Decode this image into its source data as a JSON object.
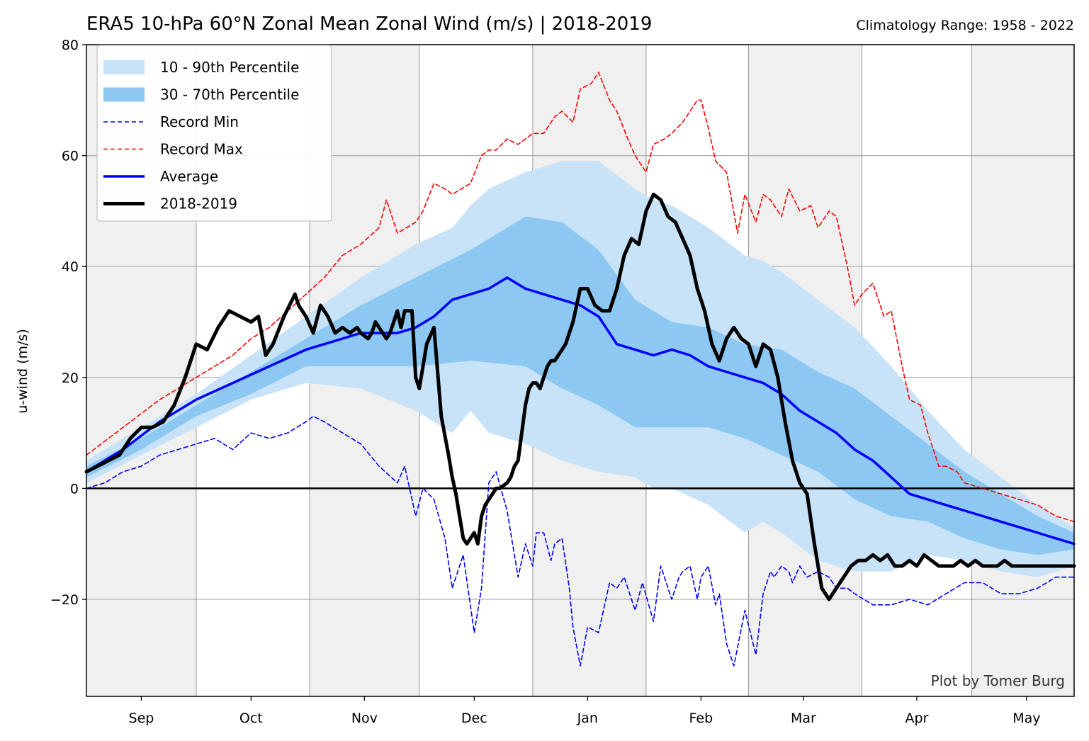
{
  "chart_data": {
    "type": "area",
    "title": "ERA5 10-hPa 60°N Zonal Mean Zonal Wind (m/s) | 2018-2019",
    "subtitle": "Climatology Range: 1958 - 2022",
    "ylabel": "u-wind (m/s)",
    "xlabel": "",
    "credit": "Plot by Tomer Burg",
    "ylim": [
      -37.5,
      80
    ],
    "xlim": [
      0,
      270
    ],
    "yticks": [
      80,
      60,
      40,
      20,
      0,
      -20
    ],
    "ytick_labels": [
      "80",
      "60",
      "40",
      "20",
      "0",
      "−20"
    ],
    "month_ticks": [
      {
        "label": "Sep",
        "x": 15
      },
      {
        "label": "Oct",
        "x": 45
      },
      {
        "label": "Nov",
        "x": 76
      },
      {
        "label": "Dec",
        "x": 106
      },
      {
        "label": "Jan",
        "x": 137
      },
      {
        "label": "Feb",
        "x": 168
      },
      {
        "label": "Mar",
        "x": 196
      },
      {
        "label": "Apr",
        "x": 227
      },
      {
        "label": "May",
        "x": 257
      }
    ],
    "shaded_periods": [
      [
        0,
        30
      ],
      [
        61,
        91
      ],
      [
        122,
        153
      ],
      [
        181,
        212
      ],
      [
        242,
        270
      ]
    ],
    "grid": true,
    "legend_placement": "top-left",
    "legend": [
      {
        "label": "10 - 90th Percentile",
        "kind": "fill",
        "color": "#c8e3f8"
      },
      {
        "label": "30 - 70th Percentile",
        "kind": "fill",
        "color": "#8dc8f2"
      },
      {
        "label": "Record Min",
        "kind": "dashed",
        "color": "#0000ff"
      },
      {
        "label": "Record Max",
        "kind": "dashed",
        "color": "#ff0000"
      },
      {
        "label": "Average",
        "kind": "solid",
        "color": "#0000ff"
      },
      {
        "label": "2018-2019",
        "kind": "solid-thick",
        "color": "#000000"
      }
    ],
    "series": {
      "p10_90": {
        "x": [
          0,
          15,
          30,
          45,
          60,
          75,
          90,
          100,
          105,
          110,
          120,
          130,
          140,
          150,
          155,
          160,
          170,
          180,
          185,
          190,
          200,
          210,
          220,
          230,
          240,
          250,
          260,
          270
        ],
        "upper": [
          5,
          11,
          17,
          24,
          31,
          38,
          44,
          47,
          51,
          54,
          57,
          59,
          59,
          54,
          52,
          51,
          47,
          42,
          41,
          39,
          34,
          29,
          22,
          14,
          7,
          2,
          -3,
          -7
        ],
        "lower": [
          1,
          6,
          11,
          16,
          19,
          18,
          14,
          10,
          14,
          10,
          8,
          5,
          3,
          2,
          0,
          0,
          -3,
          -8,
          -6,
          -8,
          -13,
          -15,
          -15,
          -12,
          -13,
          -15,
          -16,
          -14
        ]
      },
      "p30_70": {
        "x": [
          0,
          15,
          30,
          45,
          60,
          75,
          90,
          105,
          120,
          130,
          140,
          150,
          160,
          170,
          180,
          190,
          200,
          210,
          220,
          230,
          240,
          250,
          260,
          270
        ],
        "upper": [
          4,
          9,
          15,
          21,
          27,
          33,
          38,
          43,
          49,
          48,
          43,
          34,
          30,
          29,
          26,
          25,
          21,
          18,
          13,
          8,
          3,
          -1,
          -5,
          -8
        ],
        "lower": [
          2,
          7,
          13,
          17,
          22,
          22,
          22,
          23,
          22,
          18,
          15,
          11,
          11,
          11,
          9,
          6,
          3,
          -2,
          -5,
          -6,
          -9,
          -11,
          -12,
          -11
        ]
      },
      "record_min": {
        "x": [
          0,
          5,
          10,
          15,
          20,
          25,
          30,
          35,
          40,
          45,
          50,
          55,
          60,
          62,
          65,
          70,
          75,
          80,
          85,
          87,
          90,
          92,
          95,
          98,
          100,
          103,
          106,
          108,
          110,
          112,
          115,
          118,
          120,
          122,
          123,
          125,
          127,
          128,
          130,
          132,
          133,
          135,
          137,
          140,
          143,
          145,
          147,
          150,
          152,
          155,
          157,
          160,
          162,
          163,
          165,
          167,
          168,
          170,
          172,
          173,
          175,
          177,
          180,
          183,
          185,
          187,
          188,
          190,
          192,
          193,
          195,
          197,
          200,
          203,
          205,
          208,
          210,
          215,
          220,
          225,
          230,
          235,
          240,
          245,
          250,
          255,
          260,
          265,
          270
        ],
        "y": [
          0,
          1,
          3,
          4,
          6,
          7,
          8,
          9,
          7,
          10,
          9,
          10,
          12,
          13,
          12,
          10,
          8,
          4,
          1,
          4,
          -5,
          0,
          -2,
          -9,
          -18,
          -12,
          -26,
          -18,
          1,
          3,
          -4,
          -16,
          -10,
          -14,
          -8,
          -8,
          -13,
          -10,
          -9,
          -18,
          -25,
          -32,
          -25,
          -26,
          -17,
          -18,
          -16,
          -22,
          -17,
          -24,
          -14,
          -20,
          -16,
          -15,
          -14,
          -20,
          -16,
          -14,
          -21,
          -19,
          -28,
          -32,
          -22,
          -30,
          -19,
          -15,
          -16,
          -14,
          -15,
          -17,
          -14,
          -16,
          -15,
          -16,
          -18,
          -18,
          -19,
          -21,
          -21,
          -20,
          -21,
          -19,
          -17,
          -17,
          -19,
          -19,
          -18,
          -16,
          -16
        ]
      },
      "record_max": {
        "x": [
          0,
          10,
          20,
          30,
          40,
          45,
          50,
          55,
          60,
          65,
          70,
          75,
          80,
          82,
          85,
          90,
          92,
          95,
          98,
          100,
          105,
          108,
          110,
          112,
          115,
          118,
          120,
          122,
          125,
          128,
          130,
          133,
          135,
          138,
          140,
          143,
          145,
          148,
          150,
          153,
          155,
          158,
          160,
          163,
          165,
          167,
          168,
          170,
          172,
          175,
          178,
          180,
          183,
          185,
          187,
          190,
          192,
          195,
          198,
          200,
          203,
          205,
          208,
          210,
          212,
          215,
          218,
          220,
          223,
          225,
          228,
          230,
          233,
          235,
          238,
          240,
          245,
          250,
          255,
          260,
          265,
          270
        ],
        "y": [
          6,
          11,
          16,
          20,
          24,
          27,
          29,
          32,
          35,
          38,
          42,
          44,
          47,
          52,
          46,
          48,
          50,
          55,
          54,
          53,
          55,
          60,
          61,
          61,
          63,
          62,
          63,
          64,
          64,
          67,
          68,
          66,
          72,
          73,
          75,
          70,
          68,
          63,
          60,
          57,
          62,
          63,
          64,
          66,
          68,
          70,
          70,
          65,
          59,
          57,
          46,
          53,
          48,
          53,
          52,
          49,
          54,
          50,
          51,
          47,
          50,
          49,
          40,
          33,
          35,
          37,
          31,
          32,
          22,
          16,
          15,
          10,
          4,
          4,
          3,
          1,
          0,
          -1,
          -2,
          -3,
          -5,
          -6
        ]
      },
      "average": {
        "x": [
          0,
          10,
          20,
          30,
          40,
          50,
          60,
          65,
          70,
          75,
          80,
          85,
          90,
          95,
          100,
          105,
          110,
          115,
          120,
          125,
          130,
          135,
          140,
          145,
          150,
          155,
          160,
          165,
          170,
          175,
          180,
          185,
          190,
          195,
          200,
          205,
          210,
          215,
          220,
          225,
          230,
          235,
          240,
          245,
          250,
          255,
          260,
          265,
          270
        ],
        "y": [
          3,
          7,
          12,
          16,
          19,
          22,
          25,
          26,
          27,
          28,
          28,
          28,
          29,
          31,
          34,
          35,
          36,
          38,
          36,
          35,
          34,
          33,
          31,
          26,
          25,
          24,
          25,
          24,
          22,
          21,
          20,
          19,
          17,
          14,
          12,
          10,
          7,
          5,
          2,
          -1,
          -2,
          -3,
          -4,
          -5,
          -6,
          -7,
          -8,
          -9,
          -10
        ]
      },
      "season_2018_2019": {
        "x": [
          0,
          3,
          6,
          9,
          12,
          15,
          18,
          21,
          24,
          27,
          30,
          33,
          36,
          39,
          42,
          45,
          47,
          49,
          51,
          54,
          57,
          58,
          60,
          62,
          64,
          66,
          68,
          70,
          72,
          74,
          75,
          77,
          78,
          79,
          81,
          82,
          83,
          85,
          86,
          87,
          89,
          90,
          91,
          93,
          95,
          97,
          99,
          100,
          101,
          102,
          103,
          104,
          106,
          107,
          108,
          109,
          110,
          112,
          113,
          115,
          116,
          117,
          118,
          120,
          121,
          122,
          123,
          124,
          125,
          126,
          127,
          128,
          129,
          131,
          133,
          135,
          137,
          139,
          141,
          143,
          145,
          147,
          149,
          151,
          153,
          155,
          157,
          159,
          161,
          163,
          165,
          167,
          169,
          171,
          173,
          175,
          177,
          179,
          181,
          183,
          185,
          187,
          189,
          191,
          193,
          195,
          197,
          199,
          201,
          203,
          205,
          207,
          209,
          211,
          213,
          215,
          217,
          219,
          221,
          223,
          225,
          227,
          229,
          231,
          233,
          235,
          237,
          239,
          241,
          243,
          245,
          247,
          249,
          251,
          253,
          255,
          257,
          259,
          261,
          263,
          265,
          267,
          269,
          270
        ],
        "y": [
          3,
          4,
          5,
          6,
          9,
          11,
          11,
          12,
          15,
          20,
          26,
          25,
          29,
          32,
          31,
          30,
          31,
          24,
          26,
          31,
          35,
          33,
          31,
          28,
          33,
          31,
          28,
          29,
          28,
          29,
          28,
          27,
          28,
          30,
          28,
          27,
          28,
          32,
          29,
          32,
          32,
          20,
          18,
          26,
          29,
          13,
          6,
          2,
          -1,
          -5,
          -9,
          -10,
          -8,
          -10,
          -5,
          -3,
          -2,
          0,
          0,
          1,
          2,
          4,
          5,
          15,
          18,
          19,
          19,
          18,
          20,
          22,
          23,
          23,
          24,
          26,
          30,
          36,
          36,
          33,
          32,
          32,
          36,
          42,
          45,
          44,
          50,
          53,
          52,
          49,
          48,
          45,
          42,
          36,
          32,
          26,
          23,
          27,
          29,
          27,
          26,
          22,
          26,
          25,
          20,
          12,
          5,
          1,
          -1,
          -10,
          -18,
          -20,
          -18,
          -16,
          -14,
          -13,
          -13,
          -12,
          -13,
          -12,
          -14,
          -14,
          -13,
          -14,
          -12,
          -13,
          -14,
          -14,
          -14,
          -13,
          -14,
          -13,
          -14,
          -14,
          -14,
          -13,
          -14,
          -14,
          -14,
          -14,
          -14,
          -14,
          -14,
          -14,
          -14,
          -14
        ]
      }
    },
    "zero_line": true,
    "colors": {
      "shade_band": "#f0f0f0",
      "p10_90": "#c8e3f8",
      "p30_70": "#8dc8f2",
      "record_min": "#0000ff",
      "record_max": "#ff0000",
      "average": "#0000ff",
      "season": "#000000",
      "grid": "#b0b0b0"
    }
  }
}
